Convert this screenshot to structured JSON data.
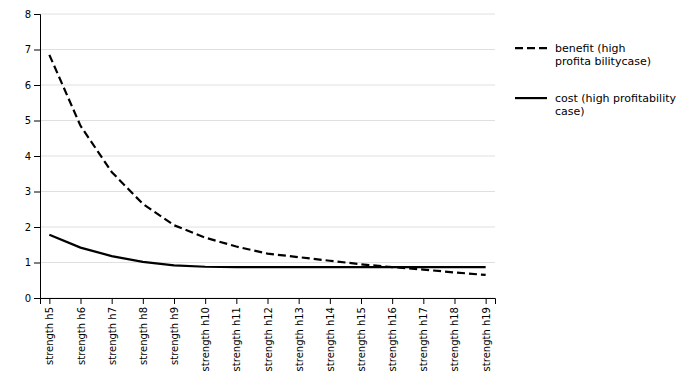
{
  "chart_data": {
    "type": "line",
    "categories": [
      "strength h5",
      "strength h6",
      "strength h7",
      "strength h8",
      "strength h9",
      "strength h10",
      "strength h11",
      "strength h12",
      "strength h13",
      "strength h14",
      "strength h15",
      "strength h16",
      "strength h17",
      "strength h18",
      "strength h19"
    ],
    "series": [
      {
        "name": "benefit (high\nprofita bilitycase)",
        "color": "#000000",
        "line_style": "dashed",
        "values": [
          6.85,
          4.85,
          3.55,
          2.65,
          2.05,
          1.7,
          1.45,
          1.25,
          1.15,
          1.05,
          0.95,
          0.87,
          0.8,
          0.72,
          0.65
        ]
      },
      {
        "name": "cost (high profitability\ncase)",
        "color": "#000000",
        "line_style": "solid",
        "values": [
          1.78,
          1.42,
          1.18,
          1.02,
          0.92,
          0.88,
          0.87,
          0.87,
          0.87,
          0.87,
          0.87,
          0.87,
          0.87,
          0.87,
          0.87
        ]
      }
    ],
    "ylim": [
      0,
      8
    ],
    "yticks": [
      0,
      1,
      2,
      3,
      4,
      5,
      6,
      7,
      8
    ],
    "grid": true,
    "legend": "right"
  }
}
